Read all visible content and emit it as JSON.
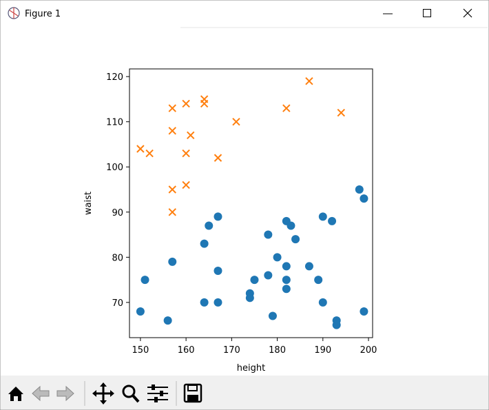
{
  "window": {
    "title": "Figure 1"
  },
  "chart_data": {
    "type": "scatter",
    "xlabel": "height",
    "ylabel": "waist",
    "xlim": [
      147.6,
      200.9
    ],
    "ylim": [
      62.2,
      121.7
    ],
    "xticks": [
      150,
      160,
      170,
      180,
      190,
      200
    ],
    "yticks": [
      70,
      80,
      90,
      100,
      110,
      120
    ],
    "series": [
      {
        "color": "#1f77b4",
        "marker": "o",
        "x": [
          150,
          151,
          156,
          157,
          164,
          164,
          165,
          167,
          167,
          167,
          174,
          174,
          175,
          178,
          178,
          179,
          180,
          182,
          183,
          182,
          182,
          182,
          184,
          187,
          189,
          190,
          190,
          192,
          193,
          193,
          198,
          199,
          199
        ],
        "values": [
          68,
          75,
          66,
          79,
          83,
          70,
          87,
          89,
          77,
          70,
          72,
          71,
          75,
          85,
          76,
          67,
          80,
          88,
          87,
          78,
          75,
          73,
          84,
          78,
          75,
          89,
          70,
          88,
          66,
          65,
          95,
          93,
          68
        ]
      },
      {
        "color": "#ff7f0e",
        "marker": "x",
        "x": [
          150,
          152,
          157,
          157,
          157,
          157,
          160,
          160,
          160,
          161,
          164,
          164,
          167,
          171,
          182,
          187,
          194
        ],
        "values": [
          104,
          103,
          113,
          108,
          95,
          90,
          114,
          103,
          96,
          107,
          115,
          114,
          102,
          110,
          113,
          119,
          112
        ]
      }
    ]
  }
}
